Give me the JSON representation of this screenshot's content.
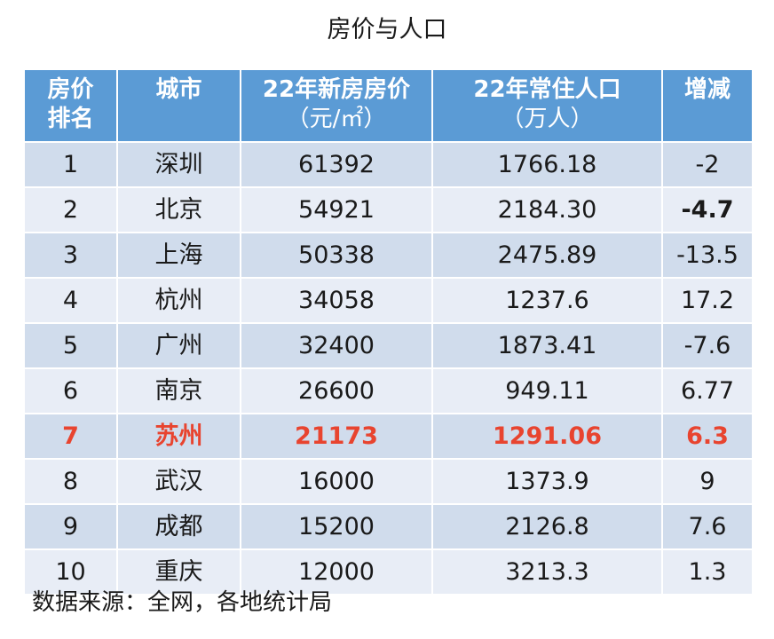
{
  "title": "房价与人口",
  "table": {
    "headers": {
      "rank_line1": "房价",
      "rank_line2": "排名",
      "city": "城市",
      "price_line1": "22年新房房价",
      "price_line2": "（元/㎡）",
      "pop_line1": "22年常住人口",
      "pop_line2": "（万人）",
      "change": "增减"
    },
    "rows": [
      {
        "rank": "1",
        "city": "深圳",
        "price": "61392",
        "population": "1766.18",
        "change": "-2"
      },
      {
        "rank": "2",
        "city": "北京",
        "price": "54921",
        "population": "2184.30",
        "change": "-4.7"
      },
      {
        "rank": "3",
        "city": "上海",
        "price": "50338",
        "population": "2475.89",
        "change": "-13.5"
      },
      {
        "rank": "4",
        "city": "杭州",
        "price": "34058",
        "population": "1237.6",
        "change": "17.2"
      },
      {
        "rank": "5",
        "city": "广州",
        "price": "32400",
        "population": "1873.41",
        "change": "-7.6"
      },
      {
        "rank": "6",
        "city": "南京",
        "price": "26600",
        "population": "949.11",
        "change": "6.77"
      },
      {
        "rank": "7",
        "city": "苏州",
        "price": "21173",
        "population": "1291.06",
        "change": "6.3"
      },
      {
        "rank": "8",
        "city": "武汉",
        "price": "16000",
        "population": "1373.9",
        "change": "9"
      },
      {
        "rank": "9",
        "city": "成都",
        "price": "15200",
        "population": "2126.8",
        "change": "7.6"
      },
      {
        "rank": "10",
        "city": "重庆",
        "price": "12000",
        "population": "3213.3",
        "change": "1.3"
      }
    ],
    "highlighted_row": 7
  },
  "colors": {
    "header_bg": "#5b9bd5",
    "row_odd_bg": "#d0dcec",
    "row_even_bg": "#e8edf6",
    "negative_text": "#3ea545",
    "highlight_text": "#e8442f"
  },
  "source": "数据来源：全网，各地统计局"
}
